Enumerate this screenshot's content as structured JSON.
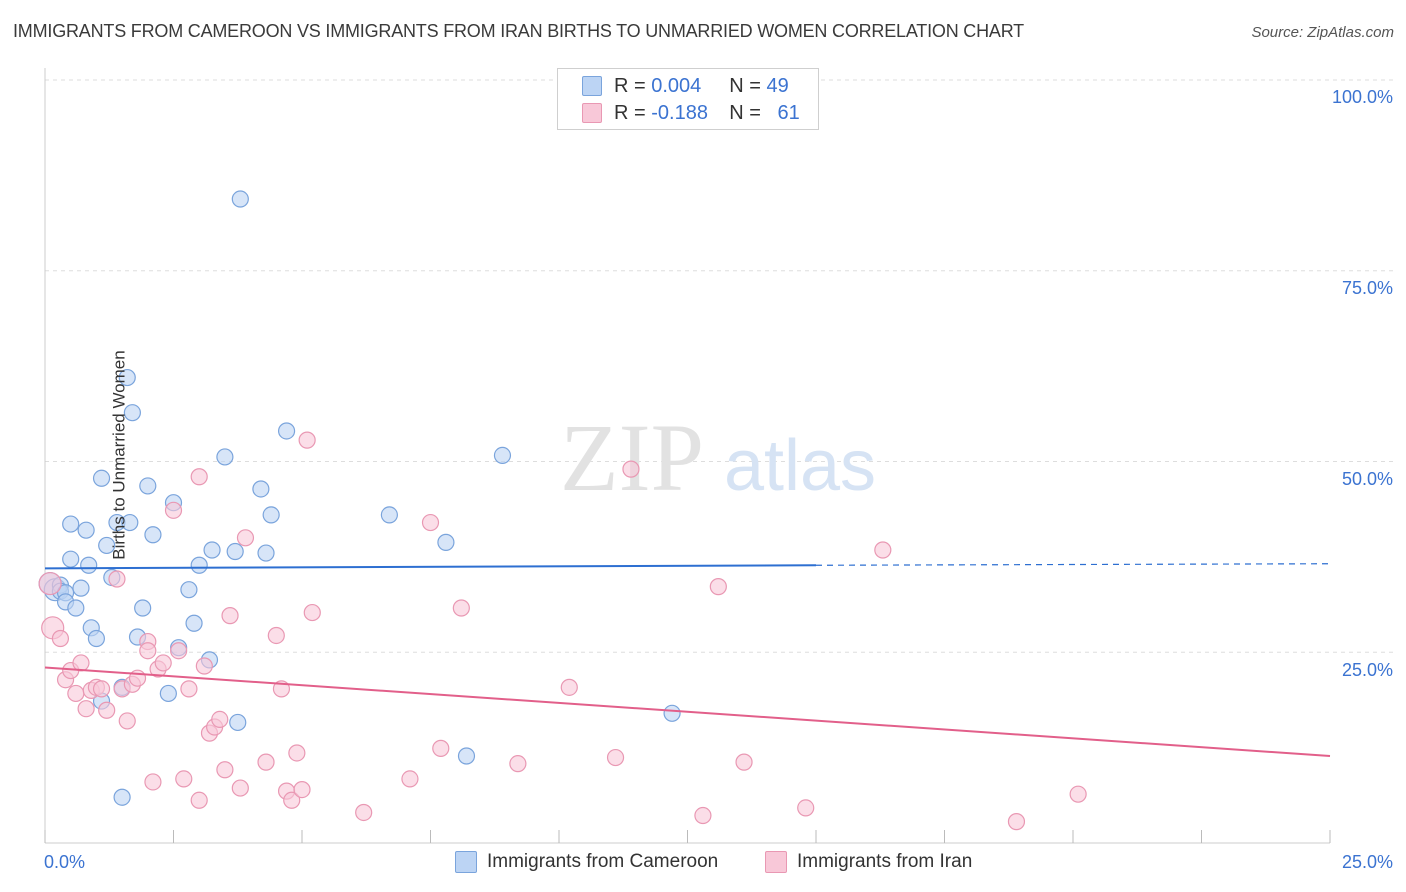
{
  "title": "IMMIGRANTS FROM CAMEROON VS IMMIGRANTS FROM IRAN BIRTHS TO UNMARRIED WOMEN CORRELATION CHART",
  "source": "Source: ZipAtlas.com",
  "watermark": {
    "zip": "ZIP",
    "atlas": "atlas"
  },
  "legend": {
    "rows": [
      {
        "r_label": "R = ",
        "r_value": "0.004",
        "n_label": "N = ",
        "n_value": "49"
      },
      {
        "r_label": "R = ",
        "r_value": "-0.188",
        "n_label": "N = ",
        "n_value": "61"
      }
    ]
  },
  "colors": {
    "series_a_fill": "#bcd4f4",
    "series_a_stroke": "#7aa4dc",
    "series_a_line": "#2d6fd1",
    "series_b_fill": "#f8c8d8",
    "series_b_stroke": "#e998b3",
    "series_b_line": "#e25f8a",
    "axis_text": "#3b73d1",
    "grid": "#dddddd"
  },
  "chart_data": {
    "type": "scatter",
    "title": "IMMIGRANTS FROM CAMEROON VS IMMIGRANTS FROM IRAN BIRTHS TO UNMARRIED WOMEN CORRELATION CHART",
    "ylabel": "Births to Unmarried Women",
    "xlabel": "",
    "xlim": [
      0,
      25
    ],
    "ylim": [
      0,
      100
    ],
    "x_ticks": [
      "0.0%",
      "25.0%"
    ],
    "y_ticks": [
      "100.0%",
      "75.0%",
      "50.0%",
      "25.0%"
    ],
    "y_tick_values": [
      100,
      75,
      50,
      25
    ],
    "grid": true,
    "legend_position": "top-center",
    "series": [
      {
        "name": "Immigrants from Cameroon",
        "R": 0.004,
        "N": 49,
        "trend": {
          "x": [
            0,
            15
          ],
          "y": [
            36.0,
            36.4
          ],
          "dashed_to": [
            15,
            25
          ],
          "dashed_y": [
            36.4,
            36.6
          ]
        },
        "points": [
          [
            0.1,
            34.0
          ],
          [
            0.2,
            33.2
          ],
          [
            0.3,
            33.8
          ],
          [
            0.3,
            33.0
          ],
          [
            0.4,
            32.8
          ],
          [
            0.4,
            31.6
          ],
          [
            0.5,
            41.8
          ],
          [
            0.5,
            37.2
          ],
          [
            0.6,
            30.8
          ],
          [
            0.7,
            33.4
          ],
          [
            0.8,
            41.0
          ],
          [
            0.85,
            36.4
          ],
          [
            0.9,
            28.2
          ],
          [
            1.0,
            26.8
          ],
          [
            1.1,
            18.6
          ],
          [
            1.1,
            47.8
          ],
          [
            1.2,
            39.0
          ],
          [
            1.3,
            34.8
          ],
          [
            1.4,
            42.0
          ],
          [
            1.5,
            20.4
          ],
          [
            1.6,
            61.0
          ],
          [
            1.65,
            42.0
          ],
          [
            1.7,
            56.4
          ],
          [
            1.8,
            27.0
          ],
          [
            1.9,
            30.8
          ],
          [
            2.0,
            46.8
          ],
          [
            2.1,
            40.4
          ],
          [
            2.4,
            19.6
          ],
          [
            2.5,
            44.6
          ],
          [
            2.6,
            25.6
          ],
          [
            2.8,
            33.2
          ],
          [
            2.9,
            28.8
          ],
          [
            3.0,
            36.4
          ],
          [
            3.2,
            24.0
          ],
          [
            3.25,
            38.4
          ],
          [
            3.5,
            50.6
          ],
          [
            3.7,
            38.2
          ],
          [
            3.75,
            15.8
          ],
          [
            3.8,
            84.4
          ],
          [
            4.2,
            46.4
          ],
          [
            4.3,
            38.0
          ],
          [
            4.4,
            43.0
          ],
          [
            4.7,
            54.0
          ],
          [
            6.7,
            43.0
          ],
          [
            7.8,
            39.4
          ],
          [
            8.2,
            11.4
          ],
          [
            8.9,
            50.8
          ],
          [
            12.2,
            17.0
          ],
          [
            1.5,
            6.0
          ]
        ]
      },
      {
        "name": "Immigrants from Iran",
        "R": -0.188,
        "N": 61,
        "trend": {
          "x": [
            0,
            25
          ],
          "y": [
            23.0,
            11.4
          ]
        },
        "points": [
          [
            0.1,
            34.0
          ],
          [
            0.15,
            28.2
          ],
          [
            0.3,
            26.8
          ],
          [
            0.4,
            21.4
          ],
          [
            0.5,
            22.6
          ],
          [
            0.6,
            19.6
          ],
          [
            0.7,
            23.6
          ],
          [
            0.8,
            17.6
          ],
          [
            0.9,
            20.0
          ],
          [
            1.0,
            20.4
          ],
          [
            1.1,
            20.2
          ],
          [
            1.2,
            17.4
          ],
          [
            1.4,
            34.6
          ],
          [
            1.5,
            20.2
          ],
          [
            1.6,
            16.0
          ],
          [
            1.7,
            20.8
          ],
          [
            1.8,
            21.6
          ],
          [
            2.0,
            26.4
          ],
          [
            2.0,
            25.2
          ],
          [
            2.1,
            8.0
          ],
          [
            2.2,
            22.8
          ],
          [
            2.3,
            23.6
          ],
          [
            2.5,
            43.6
          ],
          [
            2.6,
            25.2
          ],
          [
            2.7,
            8.4
          ],
          [
            2.8,
            20.2
          ],
          [
            3.0,
            48.0
          ],
          [
            3.0,
            5.6
          ],
          [
            3.1,
            23.2
          ],
          [
            3.2,
            14.4
          ],
          [
            3.3,
            15.2
          ],
          [
            3.4,
            16.2
          ],
          [
            3.5,
            9.6
          ],
          [
            3.6,
            29.8
          ],
          [
            3.8,
            7.2
          ],
          [
            3.9,
            40.0
          ],
          [
            4.3,
            10.6
          ],
          [
            4.5,
            27.2
          ],
          [
            4.6,
            20.2
          ],
          [
            4.7,
            6.8
          ],
          [
            4.8,
            5.6
          ],
          [
            4.9,
            11.8
          ],
          [
            5.0,
            7.0
          ],
          [
            5.1,
            52.8
          ],
          [
            5.2,
            30.2
          ],
          [
            6.2,
            4.0
          ],
          [
            7.1,
            8.4
          ],
          [
            7.5,
            42.0
          ],
          [
            7.7,
            12.4
          ],
          [
            8.1,
            30.8
          ],
          [
            9.2,
            10.4
          ],
          [
            10.2,
            20.4
          ],
          [
            11.1,
            11.2
          ],
          [
            11.4,
            49.0
          ],
          [
            12.8,
            3.6
          ],
          [
            13.1,
            33.6
          ],
          [
            13.6,
            10.6
          ],
          [
            14.8,
            4.6
          ],
          [
            16.3,
            38.4
          ],
          [
            18.9,
            2.8
          ],
          [
            20.1,
            6.4
          ]
        ]
      }
    ]
  }
}
